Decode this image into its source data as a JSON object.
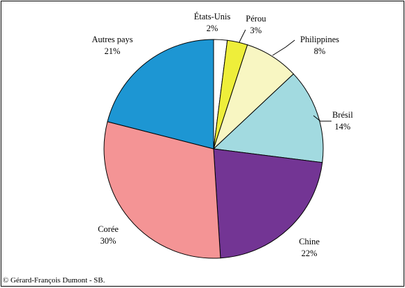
{
  "chart_data": {
    "type": "pie",
    "start": "top, clockwise",
    "slices": [
      {
        "label": "États-Unis",
        "pct": 2,
        "pct_label": "2%",
        "color": "#ffffff"
      },
      {
        "label": "Pérou",
        "pct": 3,
        "pct_label": "3%",
        "color": "#eeee3a"
      },
      {
        "label": "Philippines",
        "pct": 8,
        "pct_label": "8%",
        "color": "#f8f6c2"
      },
      {
        "label": "Brésil",
        "pct": 14,
        "pct_label": "14%",
        "color": "#a2dae0"
      },
      {
        "label": "Chine",
        "pct": 22,
        "pct_label": "22%",
        "color": "#733594"
      },
      {
        "label": "Corée",
        "pct": 30,
        "pct_label": "30%",
        "color": "#f49495"
      },
      {
        "label": "Autres pays",
        "pct": 21,
        "pct_label": "21%",
        "color": "#1d96d3"
      }
    ]
  },
  "copyright": "© Gérard-François Dumont - SB."
}
